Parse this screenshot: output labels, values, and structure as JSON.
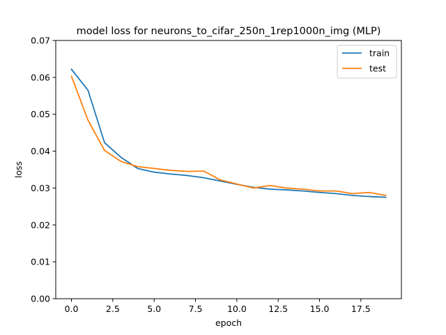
{
  "chart_data": {
    "type": "line",
    "title": "model loss for neurons_to_cifar_250n_1rep1000n_img (MLP)",
    "xlabel": "epoch",
    "ylabel": "loss",
    "xlim": [
      -0.95,
      19.95
    ],
    "ylim": [
      0.0,
      0.07
    ],
    "xticks": [
      0.0,
      2.5,
      5.0,
      7.5,
      10.0,
      12.5,
      15.0,
      17.5
    ],
    "xtick_labels": [
      "0.0",
      "2.5",
      "5.0",
      "7.5",
      "10.0",
      "12.5",
      "15.0",
      "17.5"
    ],
    "yticks": [
      0.0,
      0.01,
      0.02,
      0.03,
      0.04,
      0.05,
      0.06,
      0.07
    ],
    "ytick_labels": [
      "0.00",
      "0.01",
      "0.02",
      "0.03",
      "0.04",
      "0.05",
      "0.06",
      "0.07"
    ],
    "grid": false,
    "legend": "upper right",
    "x": [
      0,
      1,
      2,
      3,
      4,
      5,
      6,
      7,
      8,
      9,
      10,
      11,
      12,
      13,
      14,
      15,
      16,
      17,
      18,
      19
    ],
    "series": [
      {
        "name": "train",
        "color": "#1f77b4",
        "values": [
          0.0622,
          0.0565,
          0.0423,
          0.0383,
          0.0353,
          0.0343,
          0.0338,
          0.0334,
          0.0328,
          0.0319,
          0.031,
          0.0302,
          0.0297,
          0.0295,
          0.0292,
          0.0288,
          0.0285,
          0.028,
          0.0277,
          0.0275
        ]
      },
      {
        "name": "test",
        "color": "#ff7f0e",
        "values": [
          0.0603,
          0.0484,
          0.0402,
          0.0372,
          0.0358,
          0.0353,
          0.0348,
          0.0345,
          0.0346,
          0.0322,
          0.0311,
          0.03,
          0.0307,
          0.03,
          0.0297,
          0.0292,
          0.0292,
          0.0285,
          0.0288,
          0.028
        ]
      }
    ]
  }
}
